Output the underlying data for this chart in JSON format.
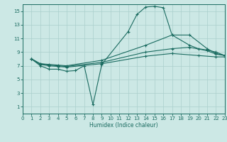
{
  "xlabel": "Humidex (Indice chaleur)",
  "bg_color": "#cce8e5",
  "grid_color": "#aacfcc",
  "line_color": "#1a6b60",
  "xlim": [
    0,
    23
  ],
  "ylim": [
    0,
    16
  ],
  "xticks": [
    0,
    1,
    2,
    3,
    4,
    5,
    6,
    7,
    8,
    9,
    10,
    11,
    12,
    13,
    14,
    15,
    16,
    17,
    18,
    19,
    20,
    21,
    22,
    23
  ],
  "yticks": [
    1,
    3,
    5,
    7,
    9,
    11,
    13,
    15
  ],
  "line1_x": [
    1,
    2,
    3,
    4,
    5,
    6,
    7,
    8,
    9,
    12,
    13,
    14,
    15,
    16,
    17,
    19,
    20,
    21,
    22,
    23
  ],
  "line1_y": [
    8.0,
    7.0,
    6.5,
    6.5,
    6.2,
    6.3,
    7.0,
    1.3,
    7.2,
    12.0,
    14.5,
    15.6,
    15.7,
    15.5,
    11.5,
    10.0,
    9.5,
    9.3,
    9.0,
    8.5
  ],
  "line2_x": [
    1,
    2,
    3,
    4,
    5,
    9,
    14,
    17,
    19,
    21,
    22,
    23
  ],
  "line2_y": [
    8.0,
    7.3,
    7.2,
    7.1,
    7.0,
    7.8,
    10.0,
    11.5,
    11.5,
    9.5,
    8.8,
    8.5
  ],
  "line3_x": [
    1,
    2,
    3,
    4,
    5,
    9,
    14,
    17,
    19,
    21,
    22,
    23
  ],
  "line3_y": [
    8.0,
    7.3,
    7.1,
    7.0,
    6.9,
    7.5,
    9.0,
    9.5,
    9.7,
    9.2,
    8.7,
    8.5
  ],
  "line4_x": [
    1,
    2,
    3,
    4,
    5,
    9,
    14,
    17,
    20,
    22,
    23
  ],
  "line4_y": [
    8.0,
    7.2,
    7.0,
    6.9,
    6.8,
    7.3,
    8.4,
    8.8,
    8.5,
    8.3,
    8.3
  ]
}
